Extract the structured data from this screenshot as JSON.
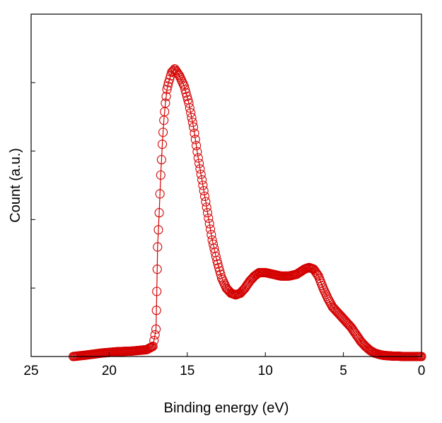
{
  "chart_data": {
    "type": "line",
    "title": "",
    "xlabel": "Binding energy (eV)",
    "ylabel": "Count (a.u.)",
    "xlim": [
      25,
      0
    ],
    "x_reversed": true,
    "ylim": [
      0,
      1.0
    ],
    "y_tick_labels_shown": false,
    "grid": false,
    "marker": "open-circle",
    "colors": {
      "series": "#d40000",
      "axis": "#000000"
    },
    "x_ticks": [
      {
        "value": 25,
        "label": "25"
      },
      {
        "value": 20,
        "label": "20"
      },
      {
        "value": 15,
        "label": "15"
      },
      {
        "value": 10,
        "label": "10"
      },
      {
        "value": 5,
        "label": "5"
      },
      {
        "value": 0,
        "label": "0"
      }
    ],
    "y_ticks": [
      0.2,
      0.4,
      0.6,
      0.8
    ],
    "series": [
      {
        "x": [
          22.3,
          21.5,
          20.5,
          19.5,
          18.5,
          17.6,
          17.2,
          17.0,
          16.95,
          16.9,
          16.8,
          16.7,
          16.6,
          16.5,
          16.4,
          16.3,
          16.2,
          16.0,
          15.8,
          15.5,
          15.2,
          14.9,
          14.6,
          14.3,
          14.0,
          13.7,
          13.4,
          13.1,
          12.8,
          12.5,
          12.2,
          11.9,
          11.6,
          11.3,
          11.0,
          10.7,
          10.4,
          10.0,
          9.5,
          9.0,
          8.5,
          8.0,
          7.5,
          7.2,
          6.9,
          6.6,
          6.3,
          6.0,
          5.7,
          5.4,
          5.1,
          4.8,
          4.5,
          4.2,
          3.9,
          3.6,
          3.3,
          3.0,
          2.7,
          2.4,
          2.1,
          1.8,
          1.5,
          1.2,
          0.9,
          0.6,
          0.3,
          0.0
        ],
        "y": [
          0.0,
          0.004,
          0.01,
          0.014,
          0.016,
          0.02,
          0.03,
          0.08,
          0.19,
          0.32,
          0.42,
          0.53,
          0.62,
          0.69,
          0.74,
          0.78,
          0.8,
          0.83,
          0.84,
          0.82,
          0.79,
          0.74,
          0.67,
          0.58,
          0.5,
          0.42,
          0.34,
          0.28,
          0.23,
          0.2,
          0.185,
          0.18,
          0.185,
          0.2,
          0.22,
          0.235,
          0.245,
          0.245,
          0.24,
          0.235,
          0.235,
          0.24,
          0.255,
          0.26,
          0.255,
          0.235,
          0.2,
          0.17,
          0.145,
          0.13,
          0.115,
          0.1,
          0.085,
          0.065,
          0.045,
          0.03,
          0.018,
          0.01,
          0.006,
          0.003,
          0.002,
          0.001,
          0.001,
          0.0,
          0.0,
          0.0,
          0.0,
          0.0
        ]
      }
    ]
  }
}
